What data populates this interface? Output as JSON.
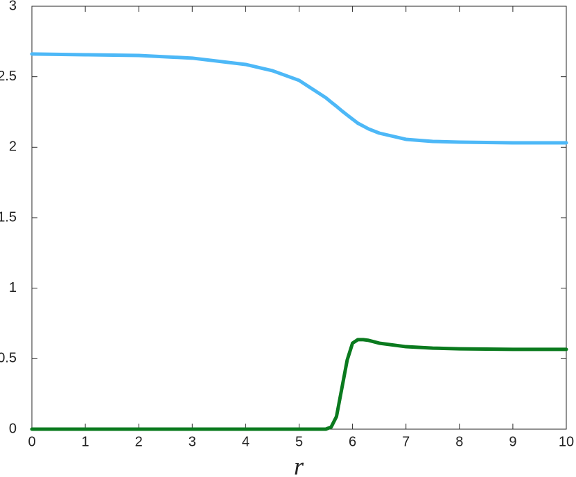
{
  "chart_data": {
    "type": "line",
    "x_label": "r",
    "x": [
      0,
      1,
      2,
      3,
      4,
      4.5,
      5,
      5.5,
      5.6,
      5.7,
      5.8,
      5.9,
      6,
      6.1,
      6.2,
      6.3,
      6.5,
      7,
      7.5,
      8,
      9,
      10
    ],
    "series": [
      {
        "color": "#4db8f7",
        "values": [
          2.661,
          2.656,
          2.651,
          2.632,
          2.587,
          2.543,
          2.474,
          2.351,
          2.32,
          2.29,
          2.258,
          2.228,
          2.199,
          2.17,
          2.15,
          2.13,
          2.1,
          2.056,
          2.041,
          2.036,
          2.031,
          2.031
        ]
      },
      {
        "color": "#0a7a1e",
        "values": [
          0,
          0,
          0,
          0,
          0,
          0,
          0,
          0,
          0.015,
          0.09,
          0.29,
          0.49,
          0.61,
          0.635,
          0.635,
          0.63,
          0.61,
          0.585,
          0.575,
          0.57,
          0.566,
          0.566
        ]
      }
    ],
    "xlim": [
      0,
      10
    ],
    "xticks": [
      0,
      1,
      2,
      3,
      4,
      5,
      6,
      7,
      8,
      9,
      10
    ],
    "ylim": [
      0,
      3
    ],
    "yticks": [
      0,
      0.5,
      1,
      1.5,
      2,
      2.5,
      3
    ]
  }
}
